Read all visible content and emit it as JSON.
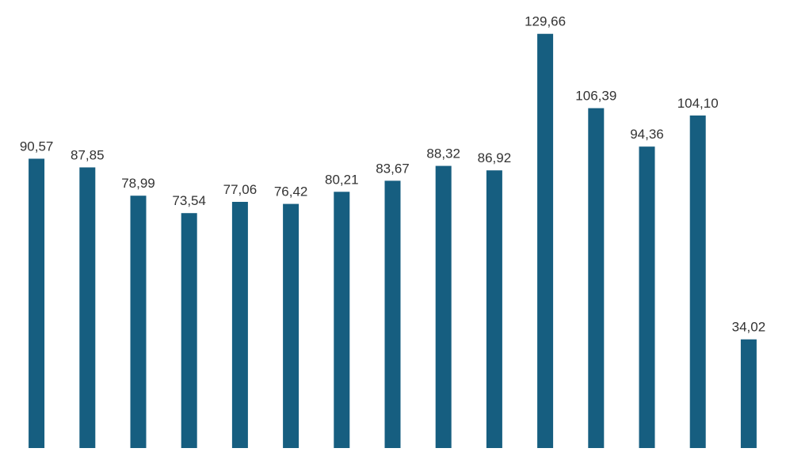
{
  "chart_data": {
    "type": "bar",
    "categories": [
      null,
      null,
      null,
      null,
      null,
      null,
      null,
      null,
      null,
      null,
      null,
      null,
      null,
      null,
      null
    ],
    "values": [
      90.57,
      87.85,
      78.99,
      73.54,
      77.06,
      76.42,
      80.21,
      83.67,
      88.32,
      86.92,
      129.66,
      106.39,
      94.36,
      104.1,
      34.02
    ],
    "value_labels": [
      "90,57",
      "87,85",
      "78,99",
      "73,54",
      "77,06",
      "76,42",
      "80,21",
      "83,67",
      "88,32",
      "86,92",
      "129,66",
      "106,39",
      "94,36",
      "104,10",
      "34,02"
    ],
    "color": "#165e80",
    "ylim": [
      0,
      140
    ]
  }
}
